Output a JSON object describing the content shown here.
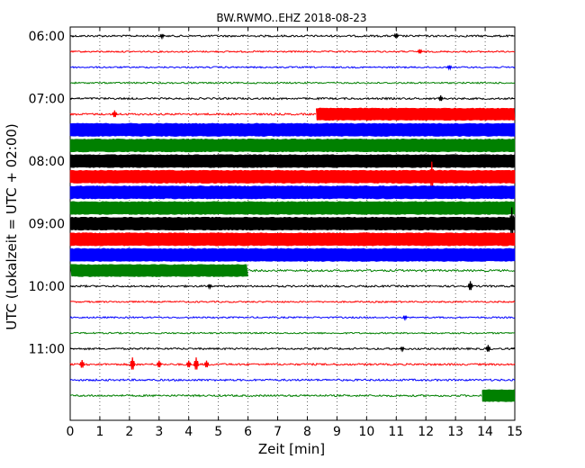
{
  "chart_data": {
    "type": "line",
    "title": "BW.RWMO..EHZ 2018-08-23",
    "xlabel": "Zeit  [min]",
    "ylabel": "UTC (Lokalzeit = UTC + 02:00)",
    "xlim": [
      0,
      15
    ],
    "x_ticks": [
      0,
      1,
      2,
      3,
      4,
      5,
      6,
      7,
      8,
      9,
      10,
      11,
      12,
      13,
      14,
      15
    ],
    "y_tick_labels": [
      "06:00",
      "07:00",
      "08:00",
      "09:00",
      "10:00",
      "11:00"
    ],
    "y_tick_rows": [
      0,
      4,
      8,
      12,
      16,
      20
    ],
    "grid": "vertical dotted",
    "colors": [
      "#000000",
      "#ff0000",
      "#0000ff",
      "#008000"
    ],
    "series": [
      {
        "row": 0,
        "start": "06:00",
        "color": "#000000",
        "segments": [
          {
            "from": 0,
            "to": 15,
            "amplitude": 0.1
          }
        ],
        "spikes": [
          {
            "x": 11.0,
            "amp": 0.2
          },
          {
            "x": 3.1,
            "amp": 0.15
          }
        ]
      },
      {
        "row": 1,
        "start": "06:15",
        "color": "#ff0000",
        "segments": [
          {
            "from": 0,
            "to": 15,
            "amplitude": 0.08
          }
        ],
        "spikes": [
          {
            "x": 11.8,
            "amp": 0.18
          }
        ]
      },
      {
        "row": 2,
        "start": "06:30",
        "color": "#0000ff",
        "segments": [
          {
            "from": 0,
            "to": 15,
            "amplitude": 0.08
          }
        ],
        "spikes": [
          {
            "x": 12.8,
            "amp": 0.15
          }
        ]
      },
      {
        "row": 3,
        "start": "06:45",
        "color": "#008000",
        "segments": [
          {
            "from": 0,
            "to": 15,
            "amplitude": 0.08
          }
        ],
        "spikes": []
      },
      {
        "row": 4,
        "start": "07:00",
        "color": "#000000",
        "segments": [
          {
            "from": 0,
            "to": 15,
            "amplitude": 0.1
          }
        ],
        "spikes": [
          {
            "x": 12.5,
            "amp": 0.25
          }
        ]
      },
      {
        "row": 5,
        "start": "07:15",
        "color": "#ff0000",
        "segments": [
          {
            "from": 0,
            "to": 8.3,
            "amplitude": 0.1
          },
          {
            "from": 8.3,
            "to": 15,
            "amplitude": 0.8
          }
        ],
        "spikes": [
          {
            "x": 1.5,
            "amp": 0.3
          }
        ]
      },
      {
        "row": 6,
        "start": "07:30",
        "color": "#0000ff",
        "segments": [
          {
            "from": 0,
            "to": 15,
            "amplitude": 0.85
          }
        ],
        "spikes": []
      },
      {
        "row": 7,
        "start": "07:45",
        "color": "#008000",
        "segments": [
          {
            "from": 0,
            "to": 15,
            "amplitude": 0.85
          }
        ],
        "spikes": []
      },
      {
        "row": 8,
        "start": "08:00",
        "color": "#000000",
        "segments": [
          {
            "from": 0,
            "to": 15,
            "amplitude": 0.85
          }
        ],
        "spikes": []
      },
      {
        "row": 9,
        "start": "08:15",
        "color": "#ff0000",
        "segments": [
          {
            "from": 0,
            "to": 15,
            "amplitude": 0.85
          }
        ],
        "spikes": [
          {
            "x": 12.2,
            "amp": 1.2
          }
        ]
      },
      {
        "row": 10,
        "start": "08:30",
        "color": "#0000ff",
        "segments": [
          {
            "from": 0,
            "to": 15,
            "amplitude": 0.85
          }
        ],
        "spikes": []
      },
      {
        "row": 11,
        "start": "08:45",
        "color": "#008000",
        "segments": [
          {
            "from": 0,
            "to": 15,
            "amplitude": 0.85
          }
        ],
        "spikes": []
      },
      {
        "row": 12,
        "start": "09:00",
        "color": "#000000",
        "segments": [
          {
            "from": 0,
            "to": 15,
            "amplitude": 0.85
          }
        ],
        "spikes": [
          {
            "x": 14.9,
            "amp": 1.3
          }
        ]
      },
      {
        "row": 13,
        "start": "09:15",
        "color": "#ff0000",
        "segments": [
          {
            "from": 0,
            "to": 15,
            "amplitude": 0.85
          }
        ],
        "spikes": []
      },
      {
        "row": 14,
        "start": "09:30",
        "color": "#0000ff",
        "segments": [
          {
            "from": 0,
            "to": 15,
            "amplitude": 0.85
          }
        ],
        "spikes": []
      },
      {
        "row": 15,
        "start": "09:45",
        "color": "#008000",
        "segments": [
          {
            "from": 0,
            "to": 6.0,
            "amplitude": 0.8
          },
          {
            "from": 6.0,
            "to": 15,
            "amplitude": 0.1
          }
        ],
        "spikes": []
      },
      {
        "row": 16,
        "start": "10:00",
        "color": "#000000",
        "segments": [
          {
            "from": 0,
            "to": 15,
            "amplitude": 0.1
          }
        ],
        "spikes": [
          {
            "x": 13.5,
            "amp": 0.4
          },
          {
            "x": 4.7,
            "amp": 0.15
          }
        ]
      },
      {
        "row": 17,
        "start": "10:15",
        "color": "#ff0000",
        "segments": [
          {
            "from": 0,
            "to": 15,
            "amplitude": 0.08
          }
        ],
        "spikes": []
      },
      {
        "row": 18,
        "start": "10:30",
        "color": "#0000ff",
        "segments": [
          {
            "from": 0,
            "to": 15,
            "amplitude": 0.08
          }
        ],
        "spikes": [
          {
            "x": 11.3,
            "amp": 0.15
          }
        ]
      },
      {
        "row": 19,
        "start": "10:45",
        "color": "#008000",
        "segments": [
          {
            "from": 0,
            "to": 15,
            "amplitude": 0.08
          }
        ],
        "spikes": []
      },
      {
        "row": 20,
        "start": "11:00",
        "color": "#000000",
        "segments": [
          {
            "from": 0,
            "to": 15,
            "amplitude": 0.1
          }
        ],
        "spikes": [
          {
            "x": 14.1,
            "amp": 0.3
          },
          {
            "x": 11.2,
            "amp": 0.15
          }
        ]
      },
      {
        "row": 21,
        "start": "11:15",
        "color": "#ff0000",
        "segments": [
          {
            "from": 0,
            "to": 15,
            "amplitude": 0.1
          }
        ],
        "spikes": [
          {
            "x": 0.4,
            "amp": 0.35
          },
          {
            "x": 2.1,
            "amp": 0.55
          },
          {
            "x": 3.0,
            "amp": 0.3
          },
          {
            "x": 4.0,
            "amp": 0.3
          },
          {
            "x": 4.25,
            "amp": 0.55
          },
          {
            "x": 4.6,
            "amp": 0.3
          }
        ]
      },
      {
        "row": 22,
        "start": "11:30",
        "color": "#0000ff",
        "segments": [
          {
            "from": 0,
            "to": 15,
            "amplitude": 0.1
          }
        ],
        "spikes": []
      },
      {
        "row": 23,
        "start": "11:45",
        "color": "#008000",
        "segments": [
          {
            "from": 0,
            "to": 13.9,
            "amplitude": 0.1
          },
          {
            "from": 13.9,
            "to": 15,
            "amplitude": 0.8
          }
        ],
        "spikes": []
      }
    ]
  }
}
